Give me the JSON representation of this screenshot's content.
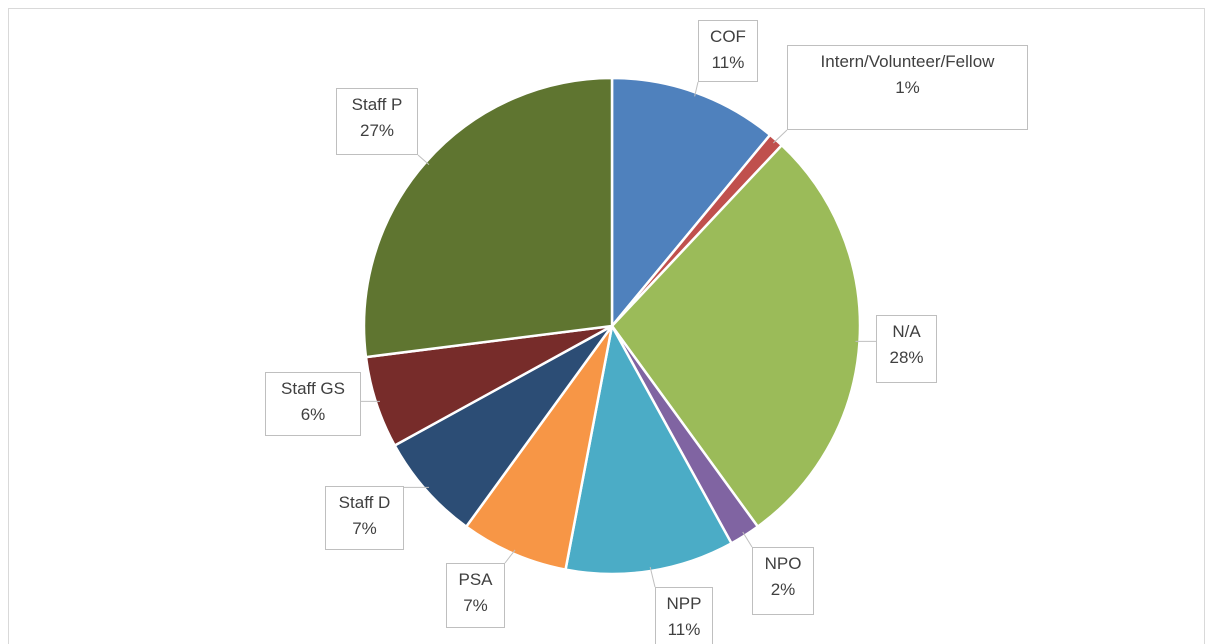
{
  "chart_data": {
    "type": "pie",
    "categories": [
      "COF",
      "Intern/Volunteer/Fellow",
      "N/A",
      "NPO",
      "NPP",
      "PSA",
      "Staff D",
      "Staff GS",
      "Staff P"
    ],
    "values": [
      11,
      1,
      28,
      2,
      11,
      7,
      7,
      6,
      27
    ],
    "value_labels": [
      "11%",
      "1%",
      "28%",
      "2%",
      "11%",
      "7%",
      "7%",
      "6%",
      "27%"
    ],
    "colors": [
      "#4f81bd",
      "#c0504d",
      "#9bbb59",
      "#8064a2",
      "#4bacc6",
      "#f79646",
      "#2c4d75",
      "#772c2a",
      "#5f7530"
    ]
  }
}
